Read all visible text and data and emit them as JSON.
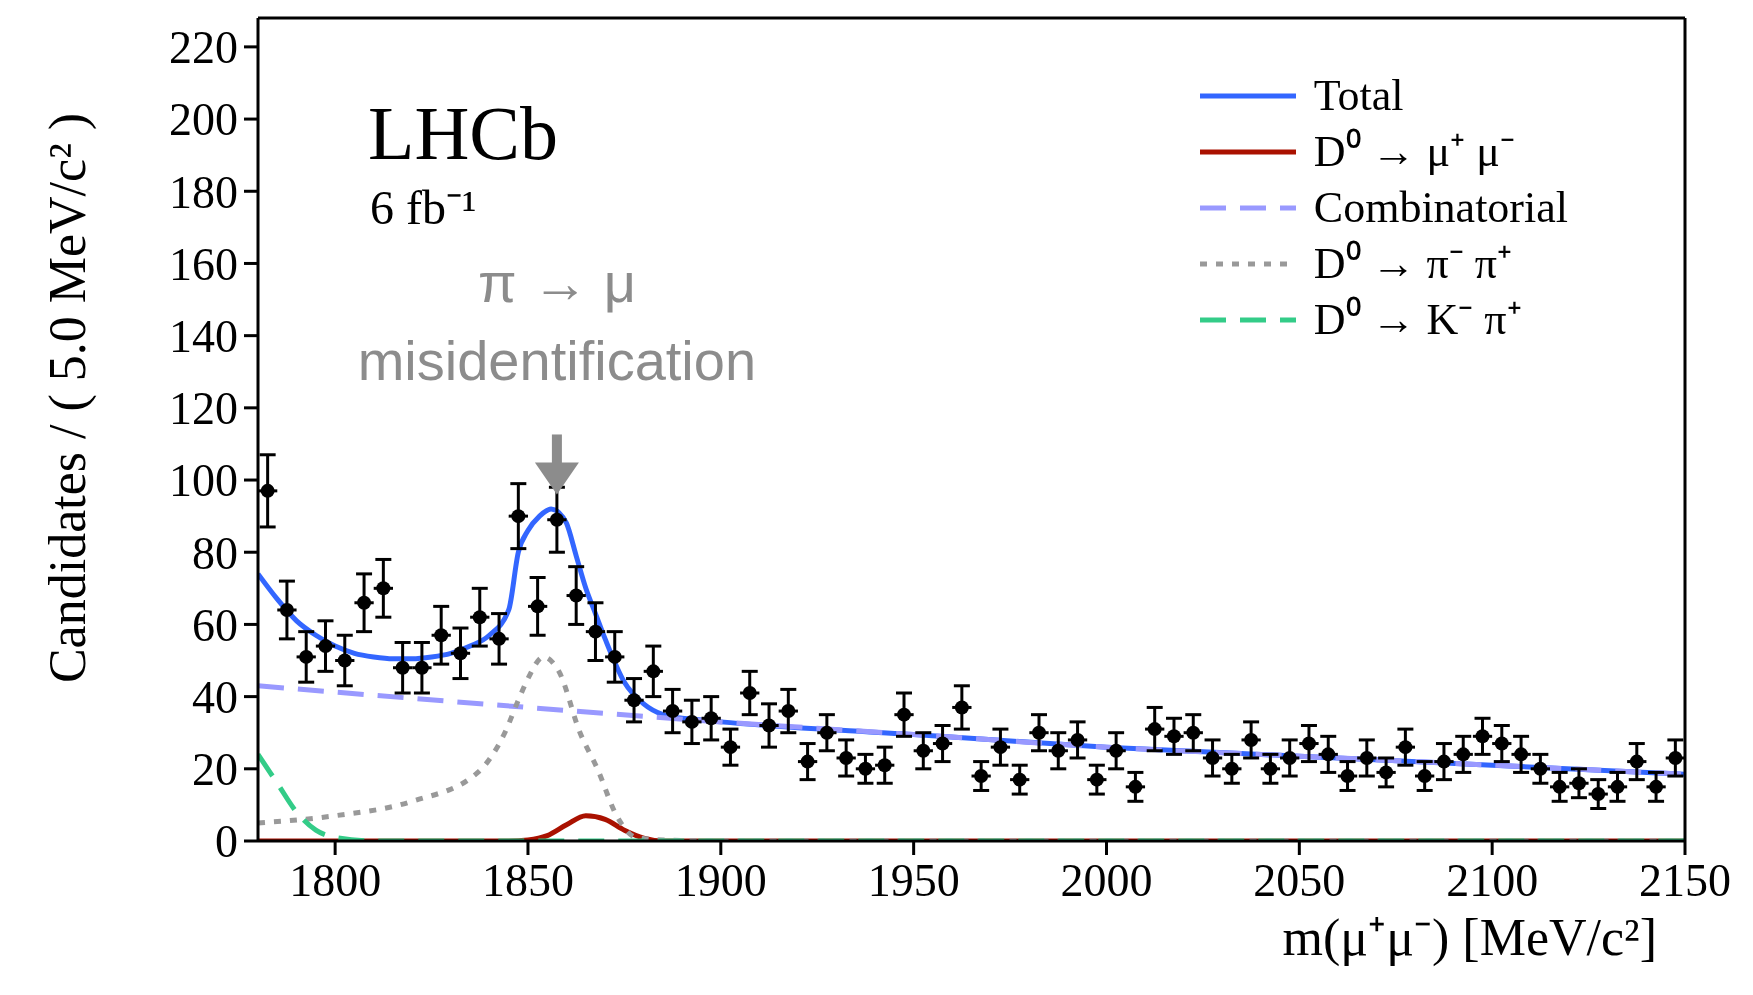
{
  "chart_data": {
    "type": "line",
    "xlabel": "m(μ⁺μ⁻) [MeV/c²]",
    "ylabel": "Candidates / ( 5.0 MeV/c² )",
    "xlim": [
      1780,
      2150
    ],
    "xticks": [
      1800,
      1850,
      1900,
      1950,
      2000,
      2050,
      2100,
      2150
    ],
    "ylim": [
      0,
      228
    ],
    "yticks": [
      0,
      20,
      40,
      60,
      80,
      100,
      120,
      140,
      160,
      180,
      200,
      220
    ],
    "grid": false,
    "legend": "top right",
    "annotations": [
      "LHCb",
      "6 fb⁻¹",
      {
        "text": "π → μ misidentification",
        "x": 1857.5,
        "y": 96
      }
    ],
    "series": [
      {
        "name": "Total",
        "color": "#3366ff",
        "line_style": "solid",
        "marker": "none",
        "x": [
          1780,
          1785,
          1790,
          1795,
          1800,
          1805,
          1810,
          1815,
          1820,
          1825,
          1830,
          1835,
          1840,
          1845,
          1847.5,
          1850,
          1853,
          1856,
          1858,
          1860,
          1862.5,
          1865,
          1867.5,
          1870,
          1875,
          1880,
          1885,
          1890,
          1895,
          1900,
          1950,
          2000,
          2050,
          2100,
          2150
        ],
        "values": [
          74,
          67,
          61,
          57,
          54,
          52,
          51,
          50.5,
          50.5,
          51,
          52,
          54,
          57,
          64,
          80,
          86,
          90,
          92,
          91,
          88,
          79,
          70,
          63,
          56,
          44,
          38,
          35,
          34,
          33.5,
          33,
          29.5,
          26,
          23.5,
          21,
          18.5
        ]
      },
      {
        "name": "D⁰ → μ⁺ μ⁻",
        "color": "#aa1100",
        "line_style": "solid",
        "marker": "none",
        "x": [
          1780,
          1845,
          1850,
          1855,
          1860,
          1865,
          1870,
          1875,
          1880,
          1885,
          2150
        ],
        "values": [
          0,
          0,
          0.3,
          1.5,
          4.5,
          7,
          6,
          3,
          0.8,
          0,
          0
        ]
      },
      {
        "name": "Combinatorial",
        "color": "#9999ff",
        "line_style": "dashed",
        "marker": "none",
        "x": [
          1780,
          1850,
          1900,
          1950,
          2000,
          2050,
          2100,
          2150
        ],
        "values": [
          43,
          37,
          33,
          29.5,
          26,
          23.5,
          21,
          18.5
        ]
      },
      {
        "name": "D⁰ → π⁻ π⁺",
        "color": "#999999",
        "line_style": "dotted",
        "marker": "none",
        "x": [
          1780,
          1800,
          1820,
          1837,
          1844,
          1847.5,
          1850,
          1854,
          1858,
          1863.5,
          1868,
          1873,
          1878,
          1885,
          1900,
          2150
        ],
        "values": [
          5,
          7,
          11,
          19,
          30,
          39,
          45,
          51,
          47,
          30,
          20,
          7,
          1,
          0.3,
          0,
          0
        ]
      },
      {
        "name": "D⁰ → K⁻ π⁺",
        "color": "#33cc88",
        "line_style": "dashed",
        "marker": "none",
        "x": [
          1780,
          1785,
          1790,
          1795,
          1800,
          1810,
          2150
        ],
        "values": [
          24,
          16,
          8,
          3,
          1,
          0,
          0
        ]
      },
      {
        "type": "scatter",
        "color": "#000000",
        "marker": "circle",
        "x": [
          1782.5,
          1787.5,
          1792.5,
          1797.5,
          1802.5,
          1807.5,
          1812.5,
          1817.5,
          1822.5,
          1827.5,
          1832.5,
          1837.5,
          1842.5,
          1847.5,
          1852.5,
          1857.5,
          1862.5,
          1867.5,
          1872.5,
          1877.5,
          1882.5,
          1887.5,
          1892.5,
          1897.5,
          1902.5,
          1907.5,
          1912.5,
          1917.5,
          1922.5,
          1927.5,
          1932.5,
          1937.5,
          1942.5,
          1947.5,
          1952.5,
          1957.5,
          1962.5,
          1967.5,
          1972.5,
          1977.5,
          1982.5,
          1987.5,
          1992.5,
          1997.5,
          2002.5,
          2007.5,
          2012.5,
          2017.5,
          2022.5,
          2027.5,
          2032.5,
          2037.5,
          2042.5,
          2047.5,
          2052.5,
          2057.5,
          2062.5,
          2067.5,
          2072.5,
          2077.5,
          2082.5,
          2087.5,
          2092.5,
          2097.5,
          2102.5,
          2107.5,
          2112.5,
          2117.5,
          2122.5,
          2127.5,
          2132.5,
          2137.5,
          2142.5,
          2147.5
        ],
        "values": [
          97,
          64,
          51,
          54,
          50,
          66,
          70,
          48,
          48,
          57,
          52,
          62,
          56,
          90,
          65,
          89,
          68,
          58,
          51,
          39,
          47,
          36,
          33,
          34,
          26,
          41,
          32,
          36,
          22,
          30,
          23,
          20,
          21,
          35,
          25,
          27,
          37,
          18,
          26,
          17,
          30,
          25,
          28,
          17,
          25,
          15,
          31,
          29,
          30,
          23,
          20,
          28,
          20,
          23,
          27,
          24,
          18,
          23,
          19,
          26,
          18,
          22,
          24,
          29,
          27,
          24,
          20,
          15,
          16,
          13,
          15,
          22,
          15,
          23
        ],
        "errors": [
          10,
          8,
          7,
          7,
          7,
          8,
          8,
          7,
          7,
          8,
          7,
          8,
          7,
          9,
          8,
          9,
          8,
          8,
          7,
          6,
          7,
          6,
          6,
          6,
          5,
          6,
          6,
          6,
          5,
          5,
          5,
          4,
          5,
          6,
          5,
          5,
          6,
          4,
          5,
          4,
          5,
          5,
          5,
          4,
          5,
          4,
          6,
          5,
          5,
          5,
          4,
          5,
          4,
          5,
          5,
          5,
          4,
          5,
          4,
          5,
          4,
          5,
          5,
          5,
          5,
          5,
          4,
          4,
          4,
          4,
          4,
          5,
          4,
          5
        ],
        "xerrors": [
          2.5,
          2.5,
          2.5,
          2.5,
          2.5,
          2.5,
          2.5,
          2.5,
          2.5,
          2.5,
          2.5,
          2.5,
          2.5,
          2.5,
          2.5,
          2.5,
          2.5,
          2.5,
          2.5,
          2.5,
          2.5,
          2.5,
          2.5,
          2.5,
          2.5,
          2.5,
          2.5,
          2.5,
          2.5,
          2.5,
          2.5,
          2.5,
          2.5,
          2.5,
          2.5,
          2.5,
          2.5,
          2.5,
          2.5,
          2.5,
          2.5,
          2.5,
          2.5,
          2.5,
          2.5,
          2.5,
          2.5,
          2.5,
          2.5,
          2.5,
          2.5,
          2.5,
          2.5,
          2.5,
          2.5,
          2.5,
          2.5,
          2.5,
          2.5,
          2.5,
          2.5,
          2.5,
          2.5,
          2.5,
          2.5,
          2.5,
          2.5,
          2.5,
          2.5,
          2.5,
          2.5,
          2.5,
          2.5,
          2.5
        ]
      }
    ]
  }
}
